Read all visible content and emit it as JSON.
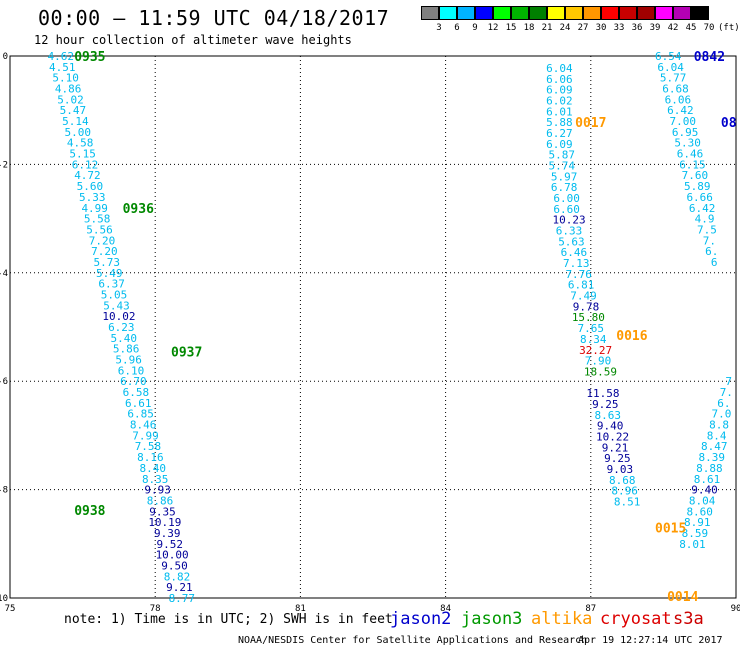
{
  "header": {
    "title": "00:00 – 11:59 UTC 04/18/2017",
    "subtitle": "12 hour collection of altimeter wave heights"
  },
  "colorbar": {
    "labels": [
      "3",
      "6",
      "9",
      "12",
      "15",
      "18",
      "21",
      "24",
      "27",
      "30",
      "33",
      "36",
      "39",
      "42",
      "45",
      "70"
    ],
    "unit": "(ft)",
    "colors": [
      "#808080",
      "#00ffff",
      "#00b4ff",
      "#0000ff",
      "#00ff00",
      "#00b400",
      "#008000",
      "#ffff00",
      "#ffc800",
      "#ff9600",
      "#ff0000",
      "#c80000",
      "#a00000",
      "#ff00ff",
      "#b400b4",
      "#000000"
    ]
  },
  "footer": {
    "note": "note: 1) Time is in UTC; 2) SWH is in feet",
    "credit": "NOAA/NESDIS Center for Satellite Applications and Research",
    "generated": "Apr 19 12:27:14 UTC 2017"
  },
  "legend": [
    {
      "name": "jason2",
      "color": "#0000cc"
    },
    {
      "name": "jason3",
      "color": "#009900"
    },
    {
      "name": "altika",
      "color": "#ff9900"
    },
    {
      "name": "cryosat",
      "color": "#dd0000"
    },
    {
      "name": "s3a",
      "color": "#cc0000"
    }
  ],
  "chart_data": {
    "type": "scatter",
    "title": "00:00 – 11:59 UTC 04/18/2017",
    "xlim": [
      75,
      90
    ],
    "ylim": [
      -10,
      0
    ],
    "xticks": [
      75,
      78,
      81,
      84,
      87,
      90
    ],
    "yticks": [
      0,
      -2,
      -4,
      -6,
      -8,
      -10
    ],
    "xtick_labels": [
      "75",
      "78",
      "81",
      "84",
      "87",
      "90"
    ],
    "ytick_labels": [
      "0",
      "-2",
      "-4",
      "-6",
      "-8",
      "-10"
    ],
    "grid": true,
    "colors": {
      "cyan": "#00bbee",
      "navy": "#000099",
      "green": "#008800",
      "red": "#dd0000",
      "orange": "#ff9900",
      "blue": "#0000cc"
    },
    "time_labels": [
      {
        "text": "0935",
        "x": 76.65,
        "y": 0.0,
        "color": "green"
      },
      {
        "text": "0936",
        "x": 77.65,
        "y": -2.8,
        "color": "green"
      },
      {
        "text": "0937",
        "x": 78.65,
        "y": -5.45,
        "color": "green"
      },
      {
        "text": "0938",
        "x": 76.65,
        "y": -8.38,
        "color": "green"
      },
      {
        "text": "0017",
        "x": 87.0,
        "y": -1.22,
        "color": "orange"
      },
      {
        "text": "0016",
        "x": 87.85,
        "y": -5.15,
        "color": "orange"
      },
      {
        "text": "0015",
        "x": 88.65,
        "y": -8.7,
        "color": "orange"
      },
      {
        "text": "0014",
        "x": 88.9,
        "y": -9.96,
        "color": "orange"
      },
      {
        "text": "0842",
        "x": 89.45,
        "y": 0.0,
        "color": "blue"
      },
      {
        "text": "08",
        "x": 89.85,
        "y": -1.22,
        "color": "blue"
      }
    ],
    "series": [
      {
        "name": "jason3",
        "points": [
          {
            "x": 76.05,
            "y": 0.0,
            "v": "4.62",
            "c": "cyan"
          },
          {
            "x": 76.08,
            "y": -0.2,
            "v": "4.51",
            "c": "cyan"
          },
          {
            "x": 76.15,
            "y": -0.4,
            "v": "5.10",
            "c": "cyan"
          },
          {
            "x": 76.2,
            "y": -0.6,
            "v": "4.86",
            "c": "cyan"
          },
          {
            "x": 76.25,
            "y": -0.8,
            "v": "5.02",
            "c": "cyan"
          },
          {
            "x": 76.3,
            "y": -1.0,
            "v": "5.47",
            "c": "cyan"
          },
          {
            "x": 76.35,
            "y": -1.2,
            "v": "5.14",
            "c": "cyan"
          },
          {
            "x": 76.4,
            "y": -1.4,
            "v": "5.00",
            "c": "cyan"
          },
          {
            "x": 76.45,
            "y": -1.6,
            "v": "4.58",
            "c": "cyan"
          },
          {
            "x": 76.5,
            "y": -1.8,
            "v": "5.15",
            "c": "cyan"
          },
          {
            "x": 76.55,
            "y": -2.0,
            "v": "6.12",
            "c": "cyan"
          },
          {
            "x": 76.6,
            "y": -2.2,
            "v": "4.72",
            "c": "cyan"
          },
          {
            "x": 76.65,
            "y": -2.4,
            "v": "5.60",
            "c": "cyan"
          },
          {
            "x": 76.7,
            "y": -2.6,
            "v": "5.33",
            "c": "cyan"
          },
          {
            "x": 76.75,
            "y": -2.8,
            "v": "4.99",
            "c": "cyan"
          },
          {
            "x": 76.8,
            "y": -3.0,
            "v": "5.58",
            "c": "cyan"
          },
          {
            "x": 76.85,
            "y": -3.2,
            "v": "5.56",
            "c": "cyan"
          },
          {
            "x": 76.9,
            "y": -3.4,
            "v": "7.20",
            "c": "cyan"
          },
          {
            "x": 76.95,
            "y": -3.6,
            "v": "7.20",
            "c": "cyan"
          },
          {
            "x": 77.0,
            "y": -3.8,
            "v": "5.73",
            "c": "cyan"
          },
          {
            "x": 77.05,
            "y": -4.0,
            "v": "5.49",
            "c": "cyan"
          },
          {
            "x": 77.1,
            "y": -4.2,
            "v": "6.37",
            "c": "cyan"
          },
          {
            "x": 77.15,
            "y": -4.4,
            "v": "5.05",
            "c": "cyan"
          },
          {
            "x": 77.2,
            "y": -4.6,
            "v": "5.43",
            "c": "cyan"
          },
          {
            "x": 77.25,
            "y": -4.8,
            "v": "10.02",
            "c": "navy"
          },
          {
            "x": 77.3,
            "y": -5.0,
            "v": "6.23",
            "c": "cyan"
          },
          {
            "x": 77.35,
            "y": -5.2,
            "v": "5.40",
            "c": "cyan"
          },
          {
            "x": 77.4,
            "y": -5.4,
            "v": "5.86",
            "c": "cyan"
          },
          {
            "x": 77.45,
            "y": -5.6,
            "v": "5.96",
            "c": "cyan"
          },
          {
            "x": 77.5,
            "y": -5.8,
            "v": "6.10",
            "c": "cyan"
          },
          {
            "x": 77.55,
            "y": -6.0,
            "v": "6.70",
            "c": "cyan"
          },
          {
            "x": 77.6,
            "y": -6.2,
            "v": "6.58",
            "c": "cyan"
          },
          {
            "x": 77.65,
            "y": -6.4,
            "v": "6.61",
            "c": "cyan"
          },
          {
            "x": 77.7,
            "y": -6.6,
            "v": "6.85",
            "c": "cyan"
          },
          {
            "x": 77.75,
            "y": -6.8,
            "v": "8.46",
            "c": "cyan"
          },
          {
            "x": 77.8,
            "y": -7.0,
            "v": "7.99",
            "c": "cyan"
          },
          {
            "x": 77.85,
            "y": -7.2,
            "v": "7.58",
            "c": "cyan"
          },
          {
            "x": 77.9,
            "y": -7.4,
            "v": "8.16",
            "c": "cyan"
          },
          {
            "x": 77.95,
            "y": -7.6,
            "v": "8.40",
            "c": "cyan"
          },
          {
            "x": 78.0,
            "y": -7.8,
            "v": "8.35",
            "c": "cyan"
          },
          {
            "x": 78.05,
            "y": -8.0,
            "v": "9.93",
            "c": "navy"
          },
          {
            "x": 78.1,
            "y": -8.2,
            "v": "8.86",
            "c": "cyan"
          },
          {
            "x": 78.15,
            "y": -8.4,
            "v": "9.35",
            "c": "navy"
          },
          {
            "x": 78.2,
            "y": -8.6,
            "v": "10.19",
            "c": "navy"
          },
          {
            "x": 78.25,
            "y": -8.8,
            "v": "9.39",
            "c": "navy"
          },
          {
            "x": 78.3,
            "y": -9.0,
            "v": "9.52",
            "c": "navy"
          },
          {
            "x": 78.35,
            "y": -9.2,
            "v": "10.00",
            "c": "navy"
          },
          {
            "x": 78.4,
            "y": -9.4,
            "v": "9.50",
            "c": "navy"
          },
          {
            "x": 78.45,
            "y": -9.6,
            "v": "8.82",
            "c": "cyan"
          },
          {
            "x": 78.5,
            "y": -9.8,
            "v": "9.21",
            "c": "navy"
          },
          {
            "x": 78.55,
            "y": -10.0,
            "v": "8.77",
            "c": "cyan"
          }
        ]
      },
      {
        "name": "altika",
        "points": [
          {
            "x": 86.35,
            "y": -0.22,
            "v": "6.04",
            "c": "cyan"
          },
          {
            "x": 86.35,
            "y": -0.42,
            "v": "6.06",
            "c": "cyan"
          },
          {
            "x": 86.35,
            "y": -0.62,
            "v": "6.09",
            "c": "cyan"
          },
          {
            "x": 86.35,
            "y": -0.82,
            "v": "6.02",
            "c": "cyan"
          },
          {
            "x": 86.35,
            "y": -1.02,
            "v": "6.01",
            "c": "cyan"
          },
          {
            "x": 86.35,
            "y": -1.22,
            "v": "5.88",
            "c": "cyan"
          },
          {
            "x": 86.35,
            "y": -1.42,
            "v": "6.27",
            "c": "cyan"
          },
          {
            "x": 86.35,
            "y": -1.62,
            "v": "6.09",
            "c": "cyan"
          },
          {
            "x": 86.4,
            "y": -1.82,
            "v": "5.87",
            "c": "cyan"
          },
          {
            "x": 86.4,
            "y": -2.02,
            "v": "5.74",
            "c": "cyan"
          },
          {
            "x": 86.45,
            "y": -2.22,
            "v": "5.97",
            "c": "cyan"
          },
          {
            "x": 86.45,
            "y": -2.42,
            "v": "6.78",
            "c": "cyan"
          },
          {
            "x": 86.5,
            "y": -2.62,
            "v": "6.00",
            "c": "cyan"
          },
          {
            "x": 86.5,
            "y": -2.82,
            "v": "6.60",
            "c": "cyan"
          },
          {
            "x": 86.55,
            "y": -3.02,
            "v": "10.23",
            "c": "navy"
          },
          {
            "x": 86.55,
            "y": -3.22,
            "v": "6.33",
            "c": "cyan"
          },
          {
            "x": 86.6,
            "y": -3.42,
            "v": "5.63",
            "c": "cyan"
          },
          {
            "x": 86.65,
            "y": -3.62,
            "v": "6.46",
            "c": "cyan"
          },
          {
            "x": 86.7,
            "y": -3.82,
            "v": "7.13",
            "c": "cyan"
          },
          {
            "x": 86.75,
            "y": -4.02,
            "v": "7.76",
            "c": "cyan"
          },
          {
            "x": 86.8,
            "y": -4.22,
            "v": "6.81",
            "c": "cyan"
          },
          {
            "x": 86.85,
            "y": -4.42,
            "v": "7.49",
            "c": "cyan"
          },
          {
            "x": 86.9,
            "y": -4.62,
            "v": "9.78",
            "c": "navy"
          },
          {
            "x": 86.95,
            "y": -4.82,
            "v": "15.80",
            "c": "green"
          },
          {
            "x": 87.0,
            "y": -5.02,
            "v": "7.65",
            "c": "cyan"
          },
          {
            "x": 87.05,
            "y": -5.22,
            "v": "8.34",
            "c": "cyan"
          },
          {
            "x": 87.1,
            "y": -5.42,
            "v": "32.27",
            "c": "red"
          },
          {
            "x": 87.15,
            "y": -5.62,
            "v": "7.90",
            "c": "cyan"
          },
          {
            "x": 87.2,
            "y": -5.82,
            "v": "18.59",
            "c": "green"
          },
          {
            "x": 87.25,
            "y": -6.22,
            "v": "11.58",
            "c": "navy"
          },
          {
            "x": 87.3,
            "y": -6.42,
            "v": "9.25",
            "c": "navy"
          },
          {
            "x": 87.35,
            "y": -6.62,
            "v": "8.63",
            "c": "cyan"
          },
          {
            "x": 87.4,
            "y": -6.82,
            "v": "9.40",
            "c": "navy"
          },
          {
            "x": 87.45,
            "y": -7.02,
            "v": "10.22",
            "c": "navy"
          },
          {
            "x": 87.5,
            "y": -7.22,
            "v": "9.21",
            "c": "navy"
          },
          {
            "x": 87.55,
            "y": -7.42,
            "v": "9.25",
            "c": "navy"
          },
          {
            "x": 87.6,
            "y": -7.62,
            "v": "9.03",
            "c": "navy"
          },
          {
            "x": 87.65,
            "y": -7.82,
            "v": "8.68",
            "c": "cyan"
          },
          {
            "x": 87.7,
            "y": -8.02,
            "v": "8.96",
            "c": "cyan"
          },
          {
            "x": 87.75,
            "y": -8.22,
            "v": "8.51",
            "c": "cyan"
          }
        ]
      },
      {
        "name": "jason2",
        "points": [
          {
            "x": 88.6,
            "y": 0.0,
            "v": "6.54",
            "c": "cyan"
          },
          {
            "x": 88.65,
            "y": -0.2,
            "v": "6.04",
            "c": "cyan"
          },
          {
            "x": 88.7,
            "y": -0.4,
            "v": "5.77",
            "c": "cyan"
          },
          {
            "x": 88.75,
            "y": -0.6,
            "v": "6.68",
            "c": "cyan"
          },
          {
            "x": 88.8,
            "y": -0.8,
            "v": "6.06",
            "c": "cyan"
          },
          {
            "x": 88.85,
            "y": -1.0,
            "v": "6.42",
            "c": "cyan"
          },
          {
            "x": 88.9,
            "y": -1.2,
            "v": "7.00",
            "c": "cyan"
          },
          {
            "x": 88.95,
            "y": -1.4,
            "v": "6.95",
            "c": "cyan"
          },
          {
            "x": 89.0,
            "y": -1.6,
            "v": "5.30",
            "c": "cyan"
          },
          {
            "x": 89.05,
            "y": -1.8,
            "v": "6.46",
            "c": "cyan"
          },
          {
            "x": 89.1,
            "y": -2.0,
            "v": "6.15",
            "c": "cyan"
          },
          {
            "x": 89.15,
            "y": -2.2,
            "v": "7.60",
            "c": "cyan"
          },
          {
            "x": 89.2,
            "y": -2.4,
            "v": "5.89",
            "c": "cyan"
          },
          {
            "x": 89.25,
            "y": -2.6,
            "v": "6.66",
            "c": "cyan"
          },
          {
            "x": 89.3,
            "y": -2.8,
            "v": "6.42",
            "c": "cyan"
          },
          {
            "x": 89.35,
            "y": -3.0,
            "v": "4.9",
            "c": "cyan"
          },
          {
            "x": 89.4,
            "y": -3.2,
            "v": "7.5",
            "c": "cyan"
          },
          {
            "x": 89.45,
            "y": -3.4,
            "v": "7.",
            "c": "cyan"
          },
          {
            "x": 89.5,
            "y": -3.6,
            "v": "6.",
            "c": "cyan"
          },
          {
            "x": 89.55,
            "y": -3.8,
            "v": "6",
            "c": "cyan"
          }
        ]
      },
      {
        "name": "jason2-lower",
        "points": [
          {
            "x": 89.85,
            "y": -6.0,
            "v": "7",
            "c": "cyan"
          },
          {
            "x": 89.8,
            "y": -6.2,
            "v": "7.",
            "c": "cyan"
          },
          {
            "x": 89.75,
            "y": -6.4,
            "v": "6.",
            "c": "cyan"
          },
          {
            "x": 89.7,
            "y": -6.6,
            "v": "7.0",
            "c": "cyan"
          },
          {
            "x": 89.65,
            "y": -6.8,
            "v": "8.8",
            "c": "cyan"
          },
          {
            "x": 89.6,
            "y": -7.0,
            "v": "8.4",
            "c": "cyan"
          },
          {
            "x": 89.55,
            "y": -7.2,
            "v": "8.47",
            "c": "cyan"
          },
          {
            "x": 89.5,
            "y": -7.4,
            "v": "8.39",
            "c": "cyan"
          },
          {
            "x": 89.45,
            "y": -7.6,
            "v": "8.88",
            "c": "cyan"
          },
          {
            "x": 89.4,
            "y": -7.8,
            "v": "8.61",
            "c": "cyan"
          },
          {
            "x": 89.35,
            "y": -8.0,
            "v": "9.40",
            "c": "navy"
          },
          {
            "x": 89.3,
            "y": -8.2,
            "v": "8.04",
            "c": "cyan"
          },
          {
            "x": 89.25,
            "y": -8.4,
            "v": "8.60",
            "c": "cyan"
          },
          {
            "x": 89.2,
            "y": -8.6,
            "v": "8.91",
            "c": "cyan"
          },
          {
            "x": 89.15,
            "y": -8.8,
            "v": "8.59",
            "c": "cyan"
          },
          {
            "x": 89.1,
            "y": -9.0,
            "v": "8.01",
            "c": "cyan"
          }
        ]
      }
    ]
  }
}
